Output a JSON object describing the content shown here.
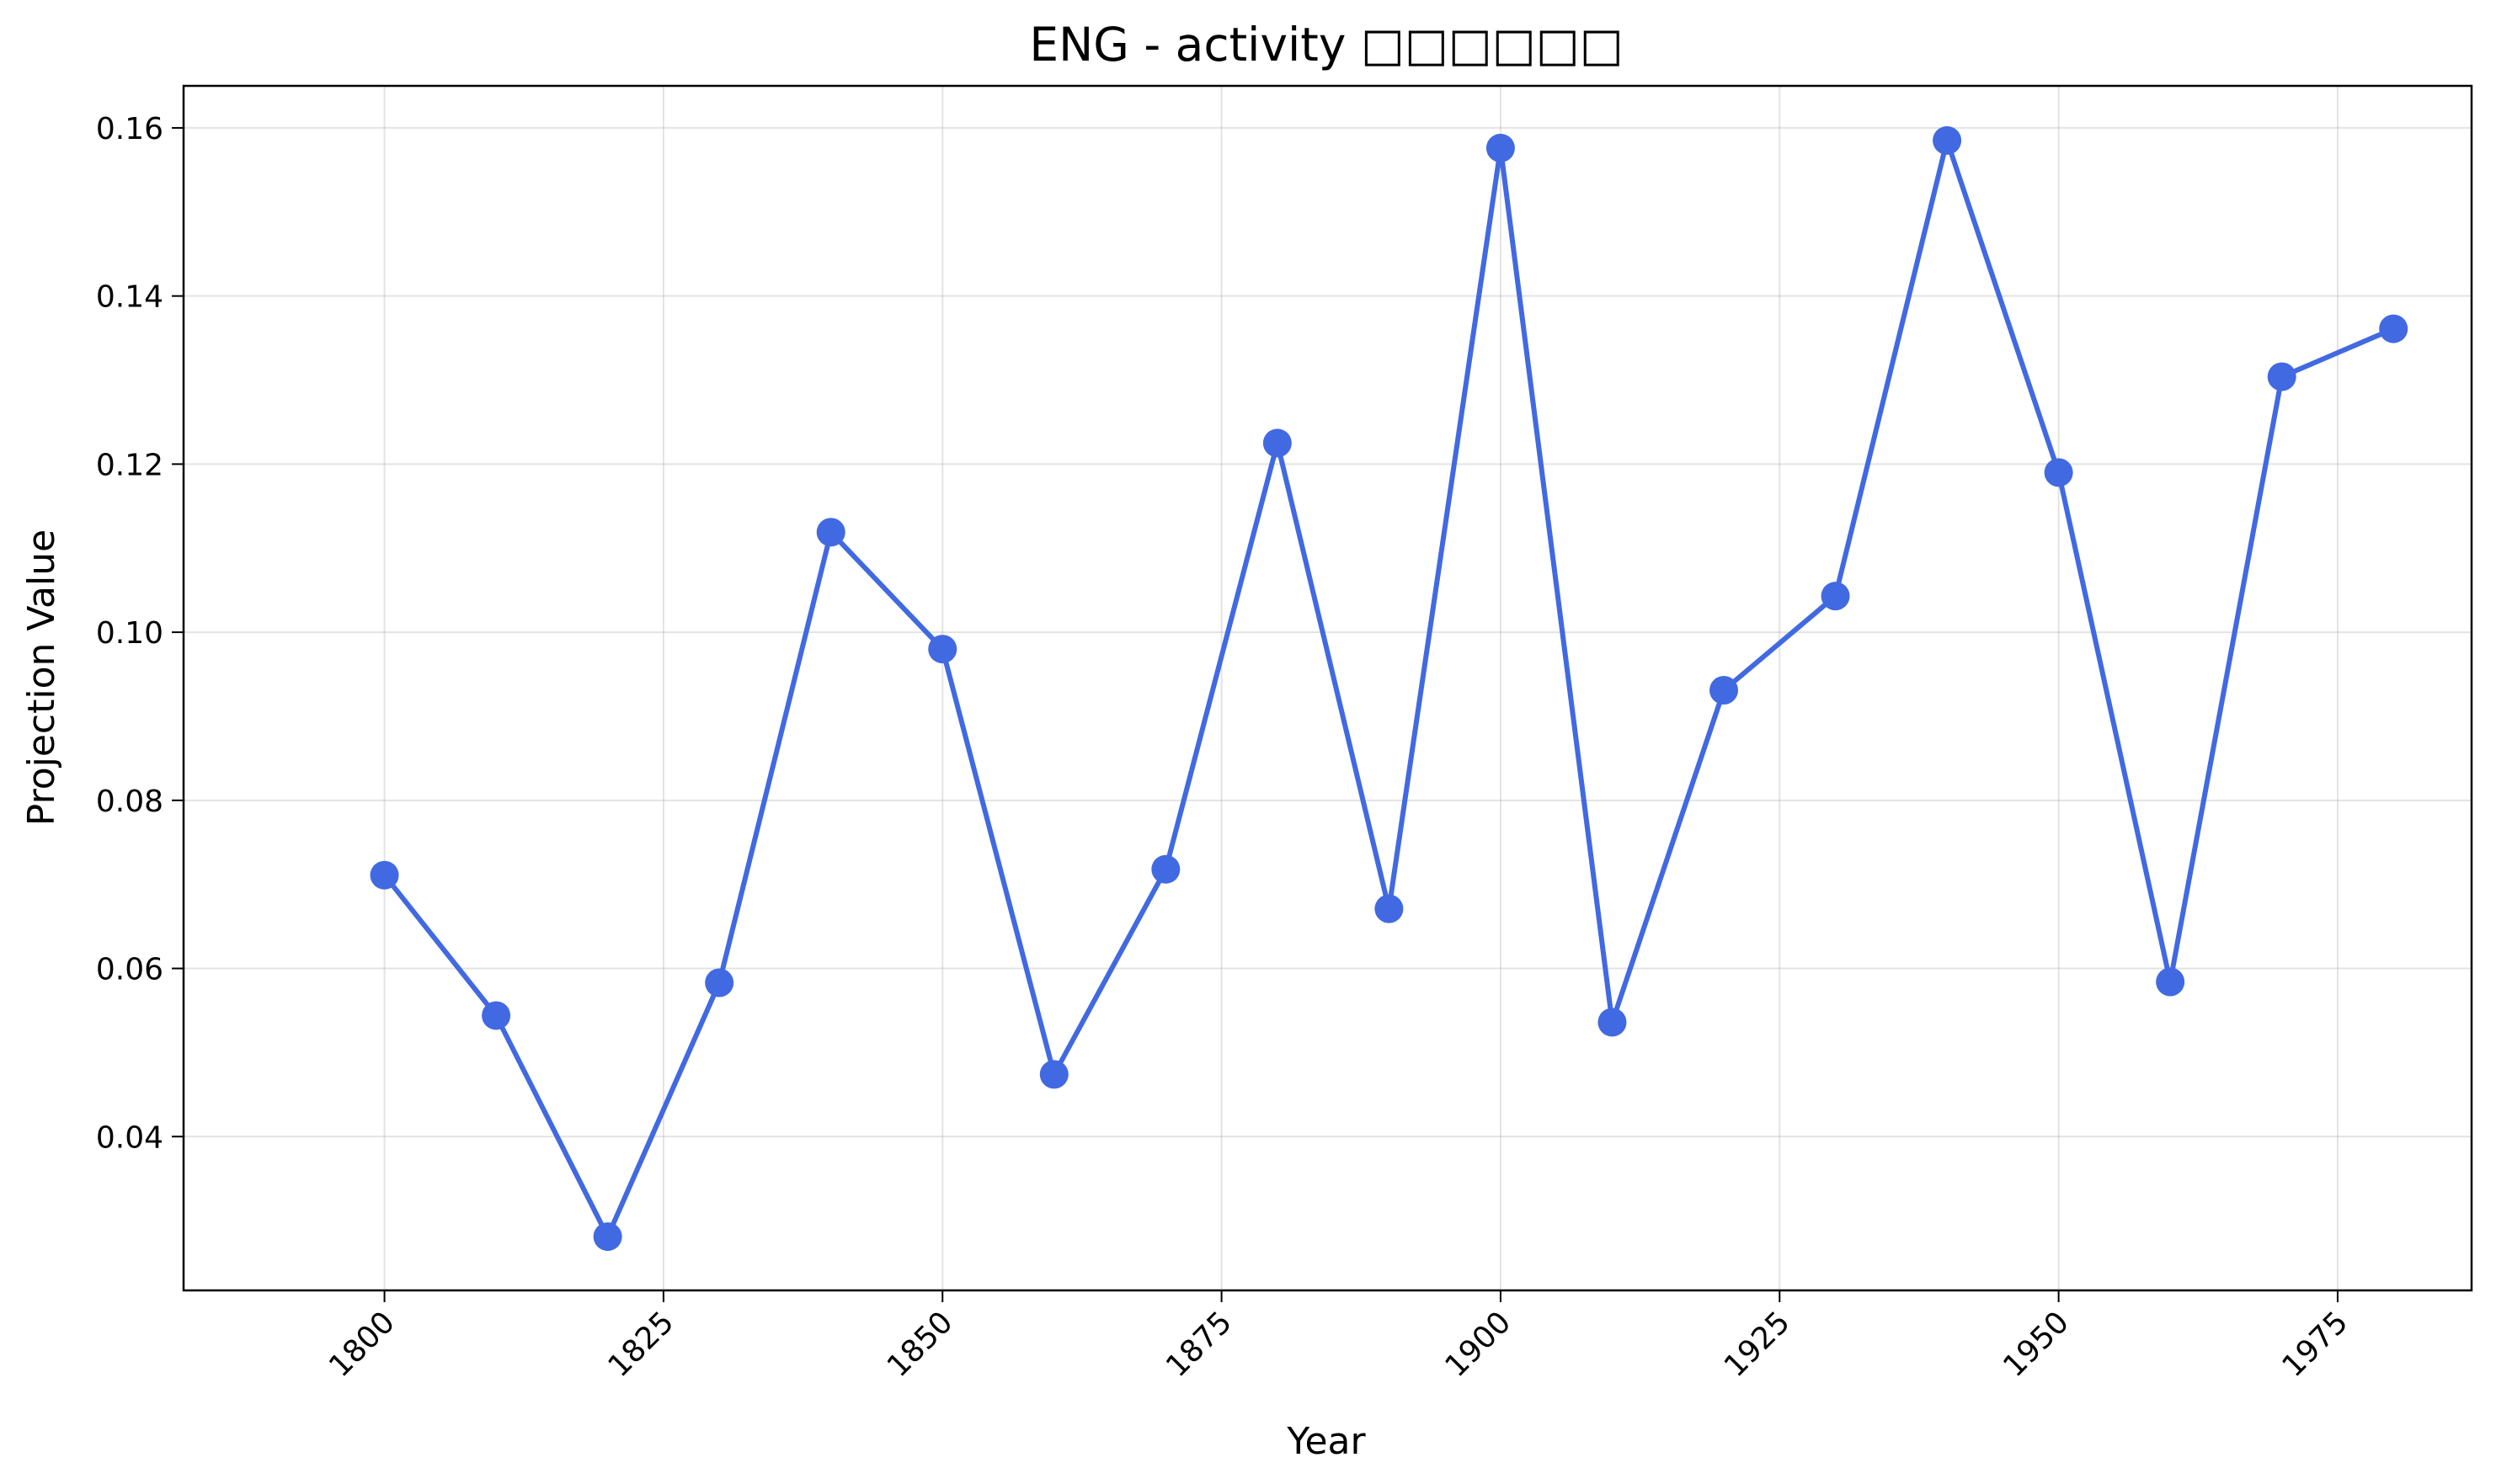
{
  "chart_data": {
    "type": "line",
    "title": "ENG - activity □□□□□□",
    "xlabel": "Year",
    "ylabel": "Projection Value",
    "xlim": [
      1782,
      1987
    ],
    "ylim": [
      0.0217,
      0.165
    ],
    "xticks": [
      1800,
      1825,
      1850,
      1875,
      1900,
      1925,
      1950,
      1975
    ],
    "yticks": [
      0.04,
      0.06,
      0.08,
      0.1,
      0.12,
      0.14,
      0.16
    ],
    "ytick_labels": [
      "0.04",
      "0.06",
      "0.08",
      "0.10",
      "0.12",
      "0.14",
      "0.16"
    ],
    "grid": true,
    "series": [
      {
        "color": "#4169E1",
        "marker": "circle",
        "x": [
          1800,
          1810,
          1820,
          1830,
          1840,
          1850,
          1860,
          1870,
          1880,
          1890,
          1900,
          1910,
          1920,
          1930,
          1940,
          1950,
          1960,
          1970,
          1980
        ],
        "y": [
          0.0711,
          0.0544,
          0.0281,
          0.0583,
          0.1119,
          0.098,
          0.0474,
          0.0718,
          0.1225,
          0.0671,
          0.1576,
          0.0536,
          0.0931,
          0.1043,
          0.1585,
          0.119,
          0.0584,
          0.1304,
          0.1361
        ]
      }
    ]
  }
}
